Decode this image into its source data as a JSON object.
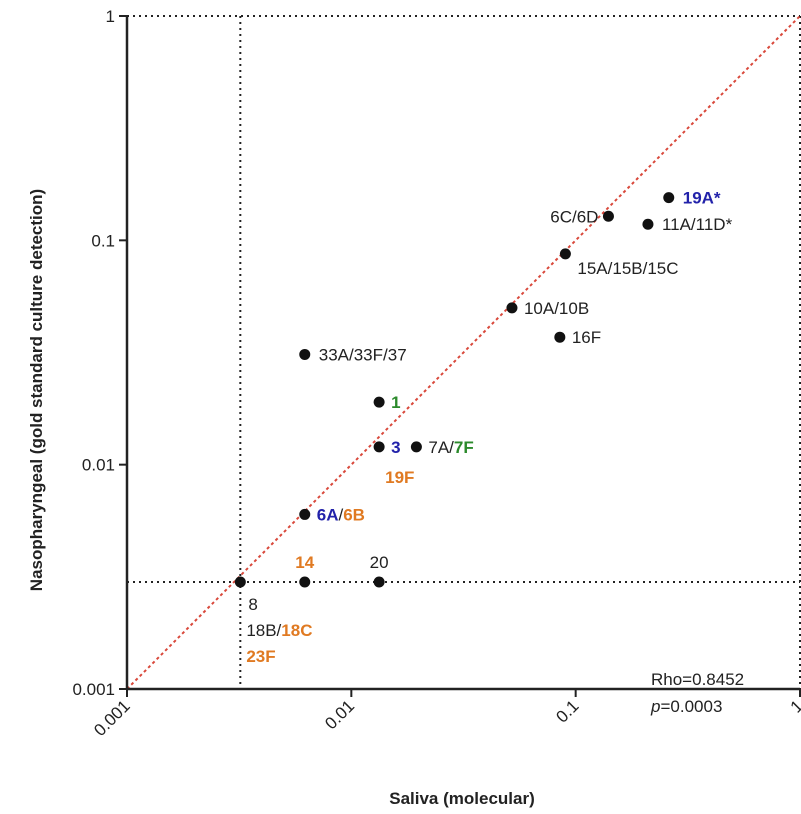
{
  "chart_data": {
    "type": "scatter",
    "x_scale": "log",
    "y_scale": "log",
    "xlabel": "Saliva (molecular)",
    "ylabel": "Nasopharyngeal (gold standard culture detection)",
    "xlim": [
      0.001,
      1
    ],
    "ylim": [
      0.001,
      1
    ],
    "x_ticks": [
      0.001,
      0.01,
      0.1,
      1
    ],
    "x_tick_labels": [
      "0.001",
      "0.01",
      "0.1",
      "1"
    ],
    "y_ticks": [
      0.001,
      0.01,
      0.1,
      1
    ],
    "y_tick_labels": [
      "0.001",
      "0.01",
      "0.1",
      "1"
    ],
    "reference_lines": {
      "identity_line": true,
      "x_threshold": 0.0032,
      "y_threshold": 0.003
    },
    "colors": {
      "black": "#222222",
      "blue": "#2222aa",
      "green": "#2b8a2b",
      "orange": "#e07a22",
      "identity": "#d9483b"
    },
    "points": [
      {
        "x": 0.26,
        "y": 0.155,
        "label": [
          {
            "text": "19A*",
            "color": "blue",
            "bold": true
          }
        ]
      },
      {
        "x": 0.21,
        "y": 0.118,
        "label": [
          {
            "text": "11A/11D*",
            "color": "black"
          }
        ]
      },
      {
        "x": 0.14,
        "y": 0.128,
        "label": [
          {
            "text": "6C/6D",
            "color": "black"
          }
        ]
      },
      {
        "x": 0.09,
        "y": 0.087,
        "label": [
          {
            "text": "15A/15B/15C",
            "color": "black"
          }
        ]
      },
      {
        "x": 0.052,
        "y": 0.05,
        "label": [
          {
            "text": "10A/10B",
            "color": "black"
          }
        ]
      },
      {
        "x": 0.085,
        "y": 0.037,
        "label": [
          {
            "text": "16F",
            "color": "black"
          }
        ]
      },
      {
        "x": 0.0062,
        "y": 0.031,
        "label": [
          {
            "text": "33A/33F/37",
            "color": "black"
          }
        ]
      },
      {
        "x": 0.0133,
        "y": 0.019,
        "label": [
          {
            "text": "1",
            "color": "green",
            "bold": true
          }
        ]
      },
      {
        "x": 0.0133,
        "y": 0.012,
        "label": [
          {
            "text": "3",
            "color": "blue",
            "bold": true
          }
        ]
      },
      {
        "x": 0.0195,
        "y": 0.012,
        "label": [
          {
            "text": "7A/",
            "color": "black"
          },
          {
            "text": "7F",
            "color": "green",
            "bold": true
          }
        ]
      },
      {
        "x": 0.0062,
        "y": 0.006,
        "label": [
          {
            "text": "6A",
            "color": "blue",
            "bold": true
          },
          {
            "text": "/",
            "color": "black"
          },
          {
            "text": "6B",
            "color": "orange",
            "bold": true
          }
        ]
      },
      {
        "x": 0.0032,
        "y": 0.003,
        "label": []
      },
      {
        "x": 0.0062,
        "y": 0.003,
        "label": [
          {
            "text": "14",
            "color": "orange",
            "bold": true
          }
        ]
      },
      {
        "x": 0.0133,
        "y": 0.003,
        "label": [
          {
            "text": "20",
            "color": "black"
          }
        ]
      }
    ],
    "extra_labels": [
      {
        "text": [
          {
            "text": "19F",
            "color": "orange",
            "bold": true
          }
        ],
        "near_point": 8
      },
      {
        "text": [
          {
            "text": "8",
            "color": "black"
          }
        ],
        "near_point": 11
      },
      {
        "text": [
          {
            "text": "18B/",
            "color": "black"
          },
          {
            "text": "18C",
            "color": "orange",
            "bold": true
          }
        ],
        "near_point": 11
      },
      {
        "text": [
          {
            "text": "23F",
            "color": "orange",
            "bold": true
          }
        ],
        "near_point": 11
      }
    ],
    "annotations": [
      "Rho=0.8452",
      "=0.0003"
    ],
    "annotation_p_symbol": "p"
  }
}
